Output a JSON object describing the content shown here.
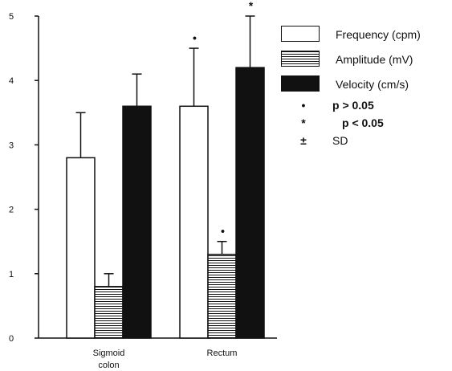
{
  "chart_data": {
    "type": "bar",
    "title": "",
    "xlabel": "",
    "ylabel": "",
    "ylim": [
      0,
      5
    ],
    "yticks": [
      "0",
      "1",
      "2",
      "3",
      "4",
      "5"
    ],
    "grid": false,
    "legend_position": "right",
    "categories": [
      "Sigmoid colon",
      "Rectum"
    ],
    "series": [
      {
        "name": "Frequency (cpm)",
        "pattern": "open",
        "values": [
          2.8,
          3.6
        ],
        "sd": [
          0.7,
          0.9
        ],
        "marks": [
          "",
          "•"
        ]
      },
      {
        "name": "Amplitude (mV)",
        "pattern": "hatched",
        "values": [
          0.8,
          1.3
        ],
        "sd": [
          0.2,
          0.2
        ],
        "marks": [
          "",
          "•"
        ]
      },
      {
        "name": "Velocity (cm/s)",
        "pattern": "solid",
        "values": [
          3.6,
          4.2
        ],
        "sd": [
          0.5,
          0.8
        ],
        "marks": [
          "",
          "*"
        ]
      }
    ],
    "notes": [
      {
        "symbol": "•",
        "text": "p > 0.05"
      },
      {
        "symbol": "*",
        "text": "p < 0.05"
      },
      {
        "symbol": "±",
        "text": "SD"
      }
    ]
  },
  "colors": {
    "ink": "#111111",
    "background": "#ffffff"
  }
}
